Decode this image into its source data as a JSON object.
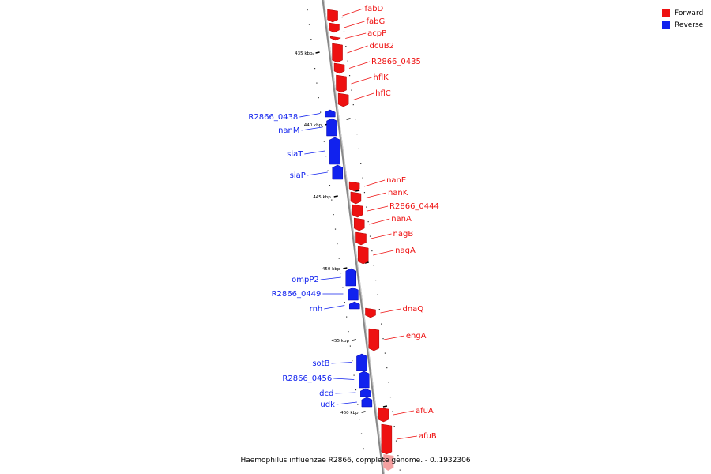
{
  "caption": "Haemophilus influenzae R2866, complete genome. - 0..1932306",
  "colors": {
    "forward": "#ee1111",
    "reverse": "#1122ee",
    "axis": "#888888",
    "tick": "#000000"
  },
  "legend": [
    {
      "label": "Forward",
      "color": "#ee1111"
    },
    {
      "label": "Reverse",
      "color": "#1122ee"
    }
  ],
  "scale_labels": [
    "435 kbp",
    "440 kbp",
    "445 kbp",
    "450 kbp",
    "455 kbp",
    "460 kbp"
  ],
  "genes": [
    {
      "name": "fabD",
      "strand": "forward"
    },
    {
      "name": "fabG",
      "strand": "forward"
    },
    {
      "name": "acpP",
      "strand": "forward"
    },
    {
      "name": "dcuB2",
      "strand": "forward"
    },
    {
      "name": "R2866_0435",
      "strand": "forward"
    },
    {
      "name": "hflK",
      "strand": "forward"
    },
    {
      "name": "hflC",
      "strand": "forward"
    },
    {
      "name": "R2866_0438",
      "strand": "reverse"
    },
    {
      "name": "nanM",
      "strand": "reverse"
    },
    {
      "name": "siaT",
      "strand": "reverse"
    },
    {
      "name": "siaP",
      "strand": "reverse"
    },
    {
      "name": "nanE",
      "strand": "forward"
    },
    {
      "name": "nanK",
      "strand": "forward"
    },
    {
      "name": "R2866_0444",
      "strand": "forward"
    },
    {
      "name": "nanA",
      "strand": "forward"
    },
    {
      "name": "nagB",
      "strand": "forward"
    },
    {
      "name": "nagA",
      "strand": "forward"
    },
    {
      "name": "ompP2",
      "strand": "reverse"
    },
    {
      "name": "R2866_0449",
      "strand": "reverse"
    },
    {
      "name": "rnh",
      "strand": "reverse"
    },
    {
      "name": "dnaQ",
      "strand": "forward"
    },
    {
      "name": "engA",
      "strand": "forward"
    },
    {
      "name": "sotB",
      "strand": "reverse"
    },
    {
      "name": "R2866_0456",
      "strand": "reverse"
    },
    {
      "name": "dcd",
      "strand": "reverse"
    },
    {
      "name": "udk",
      "strand": "reverse"
    },
    {
      "name": "afuA",
      "strand": "forward"
    },
    {
      "name": "afuB",
      "strand": "forward"
    }
  ]
}
